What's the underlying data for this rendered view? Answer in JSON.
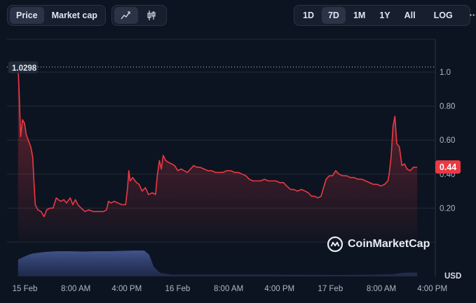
{
  "toolbar": {
    "metric_tabs": [
      {
        "label": "Price",
        "active": true
      },
      {
        "label": "Market cap",
        "active": false
      }
    ],
    "chart_type_icons": [
      "line-chart-icon",
      "candlestick-icon"
    ],
    "ranges": [
      {
        "label": "1D",
        "active": false
      },
      {
        "label": "7D",
        "active": true
      },
      {
        "label": "1M",
        "active": false
      },
      {
        "label": "1Y",
        "active": false
      },
      {
        "label": "All",
        "active": false
      }
    ],
    "log_label": "LOG",
    "more_label": "···"
  },
  "watermark": "CoinMarketCap",
  "high_label": "1.0298",
  "current_price_label": "0.44",
  "colors": {
    "line": "#ea3943",
    "badge": "#ea3943",
    "volume": "#4a5f9e",
    "background": "#0d1421"
  },
  "chart_data": {
    "type": "line",
    "title": "",
    "xlabel": "",
    "ylabel": "USD",
    "ylim": [
      0,
      1.1
    ],
    "y_ticks": [
      0.2,
      0.4,
      0.6,
      0.8,
      1.0
    ],
    "y_tick_labels": [
      "0.20",
      "0.40",
      "0.60",
      "0.80",
      "1.0"
    ],
    "x_tick_labels": [
      "15 Feb",
      "8:00 AM",
      "4:00 PM",
      "16 Feb",
      "8:00 AM",
      "4:00 PM",
      "17 Feb",
      "8:00 AM",
      "4:00 PM"
    ],
    "x_tick_hours": [
      0,
      8,
      16,
      24,
      32,
      40,
      48,
      56,
      64
    ],
    "xlim_hours": [
      -0.3,
      65.5
    ],
    "series": [
      {
        "points": [
          [
            -0.3,
            1.03
          ],
          [
            -0.1,
            0.85
          ],
          [
            0.1,
            0.62
          ],
          [
            0.4,
            0.72
          ],
          [
            0.7,
            0.7
          ],
          [
            1.0,
            0.63
          ],
          [
            1.3,
            0.6
          ],
          [
            1.7,
            0.56
          ],
          [
            2.0,
            0.5
          ],
          [
            2.2,
            0.35
          ],
          [
            2.4,
            0.22
          ],
          [
            2.8,
            0.19
          ],
          [
            3.3,
            0.18
          ],
          [
            3.8,
            0.15
          ],
          [
            4.2,
            0.19
          ],
          [
            4.7,
            0.2
          ],
          [
            5.2,
            0.2
          ],
          [
            5.7,
            0.26
          ],
          [
            6.0,
            0.25
          ],
          [
            6.4,
            0.24
          ],
          [
            6.9,
            0.25
          ],
          [
            7.3,
            0.23
          ],
          [
            7.9,
            0.26
          ],
          [
            8.3,
            0.22
          ],
          [
            8.7,
            0.25
          ],
          [
            9.1,
            0.22
          ],
          [
            9.6,
            0.2
          ],
          [
            10.2,
            0.18
          ],
          [
            10.8,
            0.19
          ],
          [
            11.5,
            0.18
          ],
          [
            12.3,
            0.18
          ],
          [
            13.1,
            0.18
          ],
          [
            13.6,
            0.19
          ],
          [
            13.9,
            0.24
          ],
          [
            14.3,
            0.23
          ],
          [
            14.8,
            0.24
          ],
          [
            15.4,
            0.23
          ],
          [
            16.0,
            0.22
          ],
          [
            16.6,
            0.22
          ],
          [
            16.9,
            0.32
          ],
          [
            17.1,
            0.42
          ],
          [
            17.3,
            0.36
          ],
          [
            17.7,
            0.38
          ],
          [
            18.3,
            0.35
          ],
          [
            18.7,
            0.34
          ],
          [
            19.2,
            0.3
          ],
          [
            19.7,
            0.32
          ],
          [
            20.2,
            0.28
          ],
          [
            20.8,
            0.29
          ],
          [
            21.3,
            0.28
          ],
          [
            21.6,
            0.4
          ],
          [
            21.9,
            0.48
          ],
          [
            22.2,
            0.43
          ],
          [
            22.5,
            0.51
          ],
          [
            22.9,
            0.48
          ],
          [
            23.3,
            0.47
          ],
          [
            23.8,
            0.46
          ],
          [
            24.3,
            0.45
          ],
          [
            24.8,
            0.42
          ],
          [
            25.3,
            0.43
          ],
          [
            25.8,
            0.42
          ],
          [
            26.3,
            0.41
          ],
          [
            26.8,
            0.43
          ],
          [
            27.3,
            0.45
          ],
          [
            27.8,
            0.44
          ],
          [
            28.3,
            0.44
          ],
          [
            28.9,
            0.43
          ],
          [
            29.5,
            0.42
          ],
          [
            30.1,
            0.42
          ],
          [
            30.7,
            0.41
          ],
          [
            31.3,
            0.41
          ],
          [
            31.9,
            0.41
          ],
          [
            32.5,
            0.42
          ],
          [
            33.1,
            0.42
          ],
          [
            33.7,
            0.41
          ],
          [
            34.3,
            0.41
          ],
          [
            34.9,
            0.4
          ],
          [
            35.5,
            0.39
          ],
          [
            36.0,
            0.37
          ],
          [
            36.6,
            0.36
          ],
          [
            37.2,
            0.36
          ],
          [
            37.8,
            0.36
          ],
          [
            38.4,
            0.37
          ],
          [
            39.0,
            0.36
          ],
          [
            39.6,
            0.36
          ],
          [
            40.2,
            0.36
          ],
          [
            40.8,
            0.35
          ],
          [
            41.4,
            0.35
          ],
          [
            41.9,
            0.33
          ],
          [
            42.5,
            0.31
          ],
          [
            43.0,
            0.31
          ],
          [
            43.6,
            0.3
          ],
          [
            44.2,
            0.31
          ],
          [
            44.8,
            0.3
          ],
          [
            45.3,
            0.29
          ],
          [
            45.8,
            0.27
          ],
          [
            46.3,
            0.27
          ],
          [
            46.8,
            0.26
          ],
          [
            47.3,
            0.27
          ],
          [
            47.7,
            0.32
          ],
          [
            48.1,
            0.37
          ],
          [
            48.6,
            0.39
          ],
          [
            49.1,
            0.39
          ],
          [
            49.6,
            0.42
          ],
          [
            50.1,
            0.4
          ],
          [
            50.7,
            0.39
          ],
          [
            51.3,
            0.39
          ],
          [
            51.9,
            0.38
          ],
          [
            52.5,
            0.38
          ],
          [
            53.1,
            0.37
          ],
          [
            53.7,
            0.37
          ],
          [
            54.3,
            0.36
          ],
          [
            54.9,
            0.35
          ],
          [
            55.5,
            0.34
          ],
          [
            56.1,
            0.34
          ],
          [
            56.7,
            0.33
          ],
          [
            57.3,
            0.34
          ],
          [
            57.8,
            0.36
          ],
          [
            58.0,
            0.4
          ],
          [
            58.3,
            0.5
          ],
          [
            58.6,
            0.68
          ],
          [
            58.9,
            0.74
          ],
          [
            59.2,
            0.58
          ],
          [
            59.6,
            0.56
          ],
          [
            60.0,
            0.45
          ],
          [
            60.4,
            0.46
          ],
          [
            60.8,
            0.43
          ],
          [
            61.3,
            0.42
          ],
          [
            61.8,
            0.44
          ],
          [
            62.4,
            0.44
          ]
        ]
      }
    ],
    "volume": {
      "points": [
        [
          -0.3,
          0.48
        ],
        [
          0.5,
          0.55
        ],
        [
          1.5,
          0.63
        ],
        [
          2.2,
          0.66
        ],
        [
          4,
          0.7
        ],
        [
          6,
          0.72
        ],
        [
          8,
          0.72
        ],
        [
          10,
          0.71
        ],
        [
          12,
          0.72
        ],
        [
          14,
          0.72
        ],
        [
          16,
          0.73
        ],
        [
          18,
          0.74
        ],
        [
          19.5,
          0.74
        ],
        [
          20.3,
          0.62
        ],
        [
          21,
          0.28
        ],
        [
          22,
          0.1
        ],
        [
          24,
          0.05
        ],
        [
          30,
          0.05
        ],
        [
          40,
          0.05
        ],
        [
          50,
          0.04
        ],
        [
          56,
          0.05
        ],
        [
          58,
          0.06
        ],
        [
          59,
          0.07
        ],
        [
          60,
          0.1
        ],
        [
          62.4,
          0.11
        ]
      ]
    }
  }
}
